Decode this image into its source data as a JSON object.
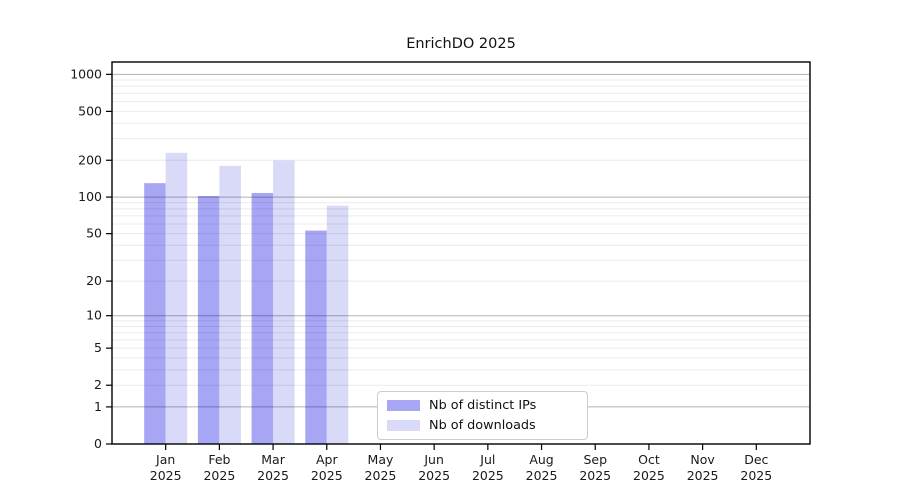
{
  "chart_data": {
    "type": "bar",
    "title": "EnrichDO 2025",
    "categories": [
      "Jan 2025",
      "Feb 2025",
      "Mar 2025",
      "Apr 2025",
      "May 2025",
      "Jun 2025",
      "Jul 2025",
      "Aug 2025",
      "Sep 2025",
      "Oct 2025",
      "Nov 2025",
      "Dec 2025"
    ],
    "series": [
      {
        "name": "Nb of distinct IPs",
        "color": "#a6a6f5",
        "values": [
          130,
          102,
          108,
          53,
          0,
          0,
          0,
          0,
          0,
          0,
          0,
          0
        ]
      },
      {
        "name": "Nb of downloads",
        "color": "#d9d9f8",
        "values": [
          230,
          180,
          199,
          85,
          0,
          0,
          0,
          0,
          0,
          0,
          0,
          0
        ]
      }
    ],
    "xlabel": "",
    "ylabel": "",
    "yscale": "log1p",
    "y_ticks": [
      0,
      1,
      2,
      5,
      10,
      20,
      50,
      100,
      200,
      500,
      1000
    ],
    "ylim": [
      0,
      1260
    ],
    "grid": "horizontal major + minor, drawn over bars",
    "legend_position": "inside bottom-center"
  },
  "colors": {
    "background": "#ffffff",
    "bar_distinct_ips": "#a6a6f5",
    "bar_downloads": "#d9d9f8",
    "grid_minor": "rgba(0,0,0,0.08)",
    "grid_decade": "rgba(0,0,0,0.30)",
    "axis_spine": "#000000",
    "tick_text": "#1a1a1a",
    "legend_border": "#cccccc"
  }
}
